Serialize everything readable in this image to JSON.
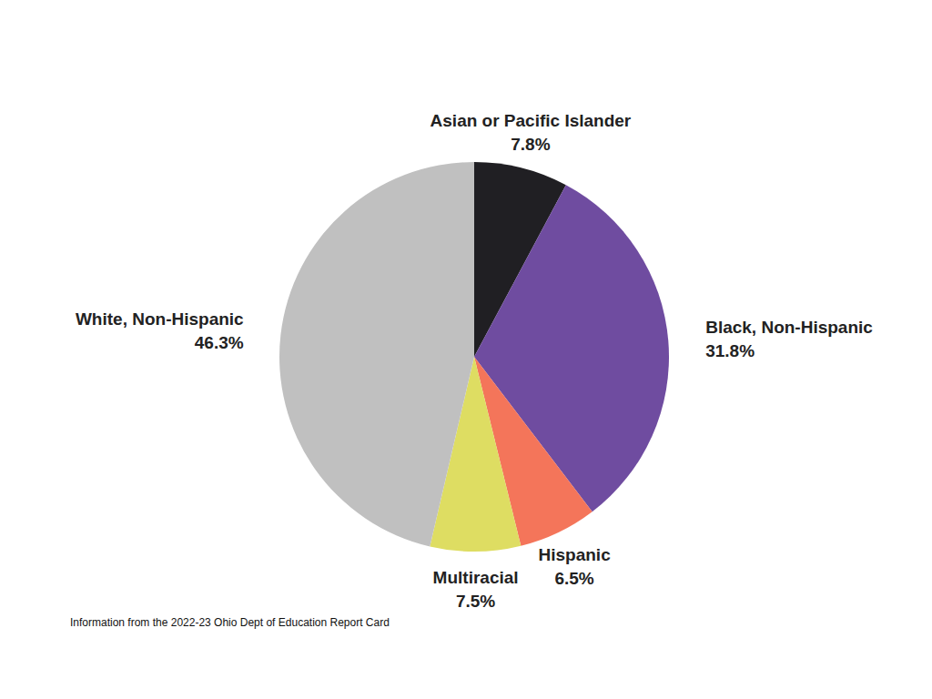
{
  "chart_data": {
    "type": "pie",
    "categories": [
      "Asian or Pacific Islander",
      "Black, Non-Hispanic",
      "Hispanic",
      "Multiracial",
      "White, Non-Hispanic"
    ],
    "values": [
      7.8,
      31.8,
      6.5,
      7.5,
      46.3
    ],
    "value_labels": [
      "7.8%",
      "31.8%",
      "6.5%",
      "7.5%",
      "46.3%"
    ],
    "colors": [
      "#201f23",
      "#6f4ca0",
      "#f4755a",
      "#dedd62",
      "#c0c0c0"
    ],
    "data_labels": true,
    "annotations": [
      "Information from the 2022-23 Ohio Dept of Education Report Card"
    ]
  }
}
